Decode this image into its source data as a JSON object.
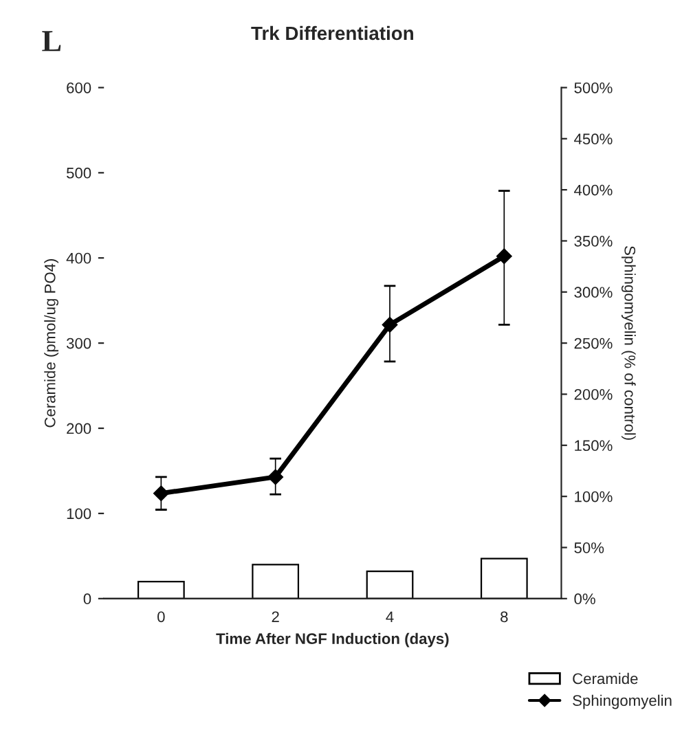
{
  "chart_data": {
    "type": "bar",
    "title": "Trk Differentiation",
    "xlabel": "Time After NGF Induction (days)",
    "ylabel": "Ceramide (pmol/ug PO4)",
    "y2label": "Sphingomyelin (% of control)",
    "annotations": [
      "L"
    ],
    "categories": [
      "0",
      "2",
      "4",
      "8"
    ],
    "series": [
      {
        "name": "Ceramide",
        "color": "#ffffff",
        "values": [
          20,
          40,
          32,
          47
        ]
      },
      {
        "name": "Sphingomyelin",
        "type": "line",
        "axis": "y2",
        "color": "#000000",
        "values": [
          103,
          119,
          268,
          335
        ],
        "errors": [
          [
            87,
            119
          ],
          [
            102,
            137
          ],
          [
            232,
            306
          ],
          [
            268,
            399
          ]
        ]
      }
    ],
    "ylim": [
      0,
      600
    ],
    "yticks": [
      0,
      100,
      200,
      300,
      400,
      500,
      600
    ],
    "y2lim": [
      0,
      500
    ],
    "y2ticks": [
      {
        "value": 0,
        "label": "0%"
      },
      {
        "value": 50,
        "label": "50%"
      },
      {
        "value": 100,
        "label": "100%"
      },
      {
        "value": 150,
        "label": "150%"
      },
      {
        "value": 200,
        "label": "200%"
      },
      {
        "value": 250,
        "label": "250%"
      },
      {
        "value": 300,
        "label": "300%"
      },
      {
        "value": 350,
        "label": "350%"
      },
      {
        "value": 400,
        "label": "400%"
      },
      {
        "value": 450,
        "label": "450%"
      },
      {
        "value": 500,
        "label": "500%"
      }
    ],
    "legend": "bottom right",
    "marker": "diamond",
    "grid": false
  }
}
